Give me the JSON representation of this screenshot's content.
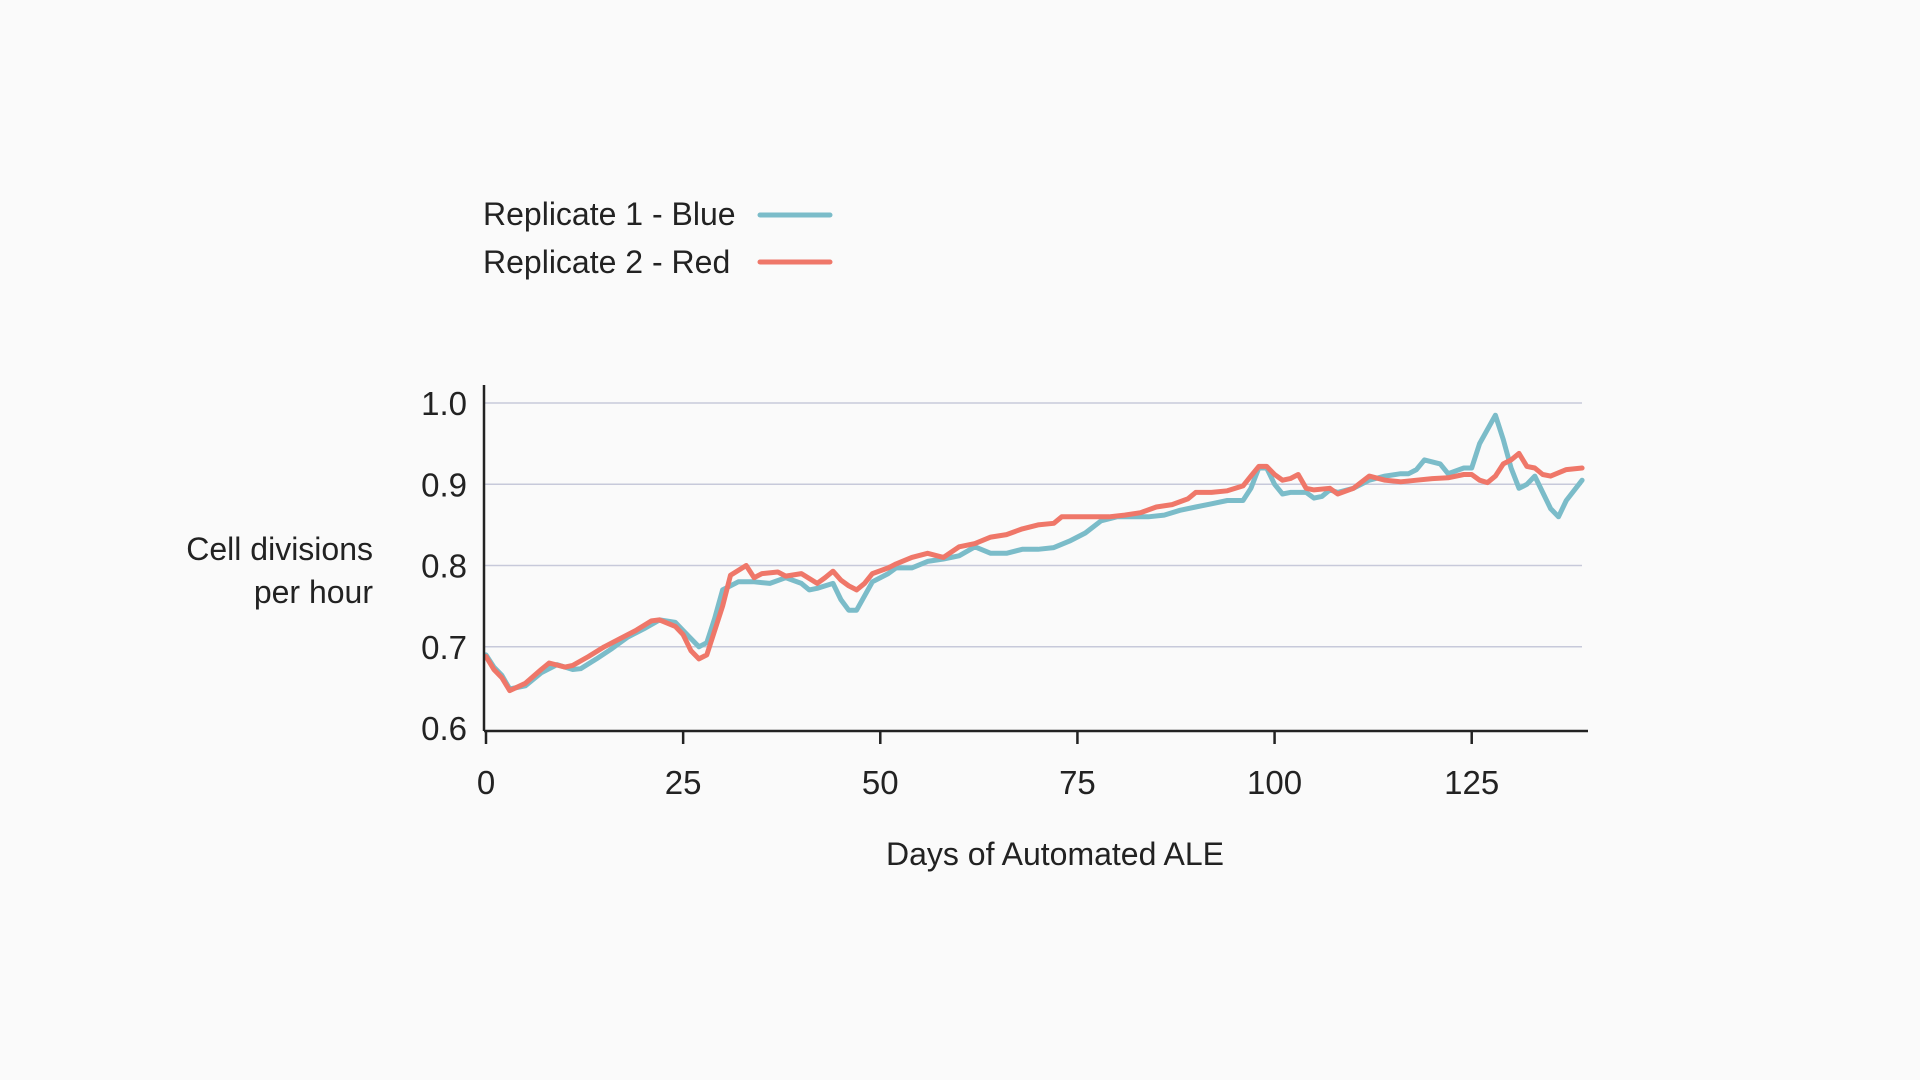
{
  "chart_data": {
    "type": "line",
    "title": "",
    "xlabel": "Days of Automated ALE",
    "ylabel_lines": [
      "Cell divisions",
      "per hour"
    ],
    "xlim": [
      0,
      140
    ],
    "ylim": [
      0.6,
      1.0
    ],
    "x_ticks": [
      0,
      25,
      50,
      75,
      100,
      125
    ],
    "x_tick_labels": [
      "0",
      "25",
      "50",
      "75",
      "100",
      "125"
    ],
    "y_ticks": [
      0.6,
      0.7,
      0.8,
      0.9,
      1.0
    ],
    "y_tick_labels": [
      "0.6",
      "0.7",
      "0.8",
      "0.9",
      "1.0"
    ],
    "grid": true,
    "legend_position": "top-left",
    "series": [
      {
        "name": "Replicate 1 - Blue",
        "color": "#7bbcc9",
        "points": [
          [
            0,
            0.69
          ],
          [
            1,
            0.675
          ],
          [
            2,
            0.665
          ],
          [
            3,
            0.648
          ],
          [
            5,
            0.652
          ],
          [
            7,
            0.668
          ],
          [
            9,
            0.678
          ],
          [
            11,
            0.672
          ],
          [
            12,
            0.673
          ],
          [
            14,
            0.685
          ],
          [
            16,
            0.698
          ],
          [
            18,
            0.712
          ],
          [
            20,
            0.722
          ],
          [
            22,
            0.733
          ],
          [
            24,
            0.73
          ],
          [
            25,
            0.72
          ],
          [
            27,
            0.7
          ],
          [
            28,
            0.705
          ],
          [
            29,
            0.735
          ],
          [
            30,
            0.77
          ],
          [
            32,
            0.78
          ],
          [
            34,
            0.78
          ],
          [
            36,
            0.778
          ],
          [
            38,
            0.785
          ],
          [
            40,
            0.778
          ],
          [
            41,
            0.77
          ],
          [
            42,
            0.772
          ],
          [
            44,
            0.778
          ],
          [
            45,
            0.758
          ],
          [
            46,
            0.745
          ],
          [
            47,
            0.745
          ],
          [
            49,
            0.78
          ],
          [
            51,
            0.79
          ],
          [
            52,
            0.797
          ],
          [
            54,
            0.797
          ],
          [
            56,
            0.805
          ],
          [
            58,
            0.808
          ],
          [
            60,
            0.812
          ],
          [
            62,
            0.823
          ],
          [
            64,
            0.815
          ],
          [
            66,
            0.815
          ],
          [
            68,
            0.82
          ],
          [
            70,
            0.82
          ],
          [
            72,
            0.822
          ],
          [
            74,
            0.83
          ],
          [
            76,
            0.84
          ],
          [
            78,
            0.855
          ],
          [
            80,
            0.86
          ],
          [
            82,
            0.86
          ],
          [
            84,
            0.86
          ],
          [
            86,
            0.862
          ],
          [
            88,
            0.868
          ],
          [
            90,
            0.872
          ],
          [
            92,
            0.876
          ],
          [
            94,
            0.88
          ],
          [
            96,
            0.88
          ],
          [
            97,
            0.895
          ],
          [
            98,
            0.92
          ],
          [
            99,
            0.92
          ],
          [
            100,
            0.9
          ],
          [
            101,
            0.888
          ],
          [
            102,
            0.89
          ],
          [
            104,
            0.89
          ],
          [
            105,
            0.883
          ],
          [
            106,
            0.885
          ],
          [
            107,
            0.893
          ],
          [
            108,
            0.89
          ],
          [
            110,
            0.895
          ],
          [
            112,
            0.905
          ],
          [
            114,
            0.91
          ],
          [
            116,
            0.913
          ],
          [
            117,
            0.913
          ],
          [
            118,
            0.918
          ],
          [
            119,
            0.93
          ],
          [
            121,
            0.925
          ],
          [
            122,
            0.913
          ],
          [
            124,
            0.92
          ],
          [
            125,
            0.92
          ],
          [
            126,
            0.95
          ],
          [
            128,
            0.985
          ],
          [
            129,
            0.955
          ],
          [
            130,
            0.92
          ],
          [
            131,
            0.895
          ],
          [
            132,
            0.9
          ],
          [
            133,
            0.91
          ],
          [
            134,
            0.89
          ],
          [
            135,
            0.87
          ],
          [
            136,
            0.86
          ],
          [
            137,
            0.88
          ],
          [
            139,
            0.905
          ]
        ]
      },
      {
        "name": "Replicate 2 - Red",
        "color": "#ef7769",
        "points": [
          [
            0,
            0.688
          ],
          [
            1,
            0.672
          ],
          [
            2,
            0.662
          ],
          [
            3,
            0.646
          ],
          [
            5,
            0.655
          ],
          [
            7,
            0.672
          ],
          [
            8,
            0.68
          ],
          [
            10,
            0.675
          ],
          [
            11,
            0.677
          ],
          [
            13,
            0.688
          ],
          [
            15,
            0.7
          ],
          [
            17,
            0.71
          ],
          [
            19,
            0.72
          ],
          [
            21,
            0.732
          ],
          [
            22,
            0.733
          ],
          [
            24,
            0.725
          ],
          [
            25,
            0.715
          ],
          [
            26,
            0.695
          ],
          [
            27,
            0.685
          ],
          [
            28,
            0.69
          ],
          [
            29,
            0.72
          ],
          [
            30,
            0.75
          ],
          [
            31,
            0.788
          ],
          [
            33,
            0.8
          ],
          [
            34,
            0.785
          ],
          [
            35,
            0.79
          ],
          [
            37,
            0.792
          ],
          [
            38,
            0.787
          ],
          [
            40,
            0.79
          ],
          [
            42,
            0.778
          ],
          [
            43,
            0.785
          ],
          [
            44,
            0.793
          ],
          [
            45,
            0.782
          ],
          [
            46,
            0.775
          ],
          [
            47,
            0.77
          ],
          [
            48,
            0.778
          ],
          [
            49,
            0.79
          ],
          [
            51,
            0.797
          ],
          [
            52,
            0.802
          ],
          [
            54,
            0.81
          ],
          [
            56,
            0.815
          ],
          [
            58,
            0.81
          ],
          [
            60,
            0.823
          ],
          [
            62,
            0.827
          ],
          [
            64,
            0.835
          ],
          [
            66,
            0.838
          ],
          [
            68,
            0.845
          ],
          [
            70,
            0.85
          ],
          [
            72,
            0.852
          ],
          [
            73,
            0.86
          ],
          [
            75,
            0.86
          ],
          [
            77,
            0.86
          ],
          [
            79,
            0.86
          ],
          [
            81,
            0.862
          ],
          [
            83,
            0.865
          ],
          [
            85,
            0.872
          ],
          [
            87,
            0.875
          ],
          [
            89,
            0.882
          ],
          [
            90,
            0.89
          ],
          [
            92,
            0.89
          ],
          [
            94,
            0.892
          ],
          [
            96,
            0.898
          ],
          [
            97,
            0.91
          ],
          [
            98,
            0.922
          ],
          [
            99,
            0.922
          ],
          [
            100,
            0.912
          ],
          [
            101,
            0.905
          ],
          [
            102,
            0.907
          ],
          [
            103,
            0.912
          ],
          [
            104,
            0.895
          ],
          [
            105,
            0.893
          ],
          [
            107,
            0.895
          ],
          [
            108,
            0.888
          ],
          [
            110,
            0.895
          ],
          [
            112,
            0.91
          ],
          [
            114,
            0.905
          ],
          [
            116,
            0.903
          ],
          [
            118,
            0.905
          ],
          [
            120,
            0.907
          ],
          [
            122,
            0.908
          ],
          [
            124,
            0.912
          ],
          [
            125,
            0.912
          ],
          [
            126,
            0.905
          ],
          [
            127,
            0.902
          ],
          [
            128,
            0.91
          ],
          [
            129,
            0.925
          ],
          [
            130,
            0.93
          ],
          [
            131,
            0.938
          ],
          [
            132,
            0.922
          ],
          [
            133,
            0.92
          ],
          [
            134,
            0.912
          ],
          [
            135,
            0.91
          ],
          [
            137,
            0.918
          ],
          [
            139,
            0.92
          ]
        ]
      }
    ]
  }
}
